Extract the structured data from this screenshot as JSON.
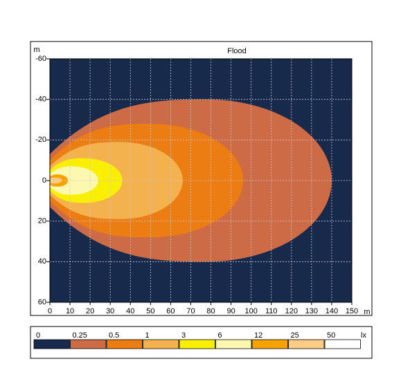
{
  "chart_data": {
    "type": "contour",
    "title": "Flood",
    "x_unit": "m",
    "y_unit": "m",
    "unit": "lx",
    "xlim": [
      0,
      150
    ],
    "ylim": [
      -60,
      60
    ],
    "xticks": [
      0,
      10,
      20,
      30,
      40,
      50,
      60,
      70,
      80,
      90,
      100,
      110,
      120,
      130,
      140,
      150
    ],
    "yticks": [
      -60,
      -40,
      -20,
      0,
      20,
      40,
      60
    ],
    "grid": true,
    "background": "#172a4c",
    "levels": [
      {
        "value": 0,
        "color": "#172a4c"
      },
      {
        "value": 0.25,
        "color": "#cc6b45",
        "reach": 140,
        "half_width": 40,
        "widest_x": 78,
        "start_half_width": 13
      },
      {
        "value": 0.5,
        "color": "#ec7d12",
        "reach": 96,
        "half_width": 28,
        "widest_x": 50,
        "start_half_width": 10
      },
      {
        "value": 1,
        "color": "#f4b24e",
        "reach": 66,
        "half_width": 19,
        "widest_x": 35,
        "start_half_width": 7
      },
      {
        "value": 3,
        "color": "#f8f000",
        "reach": 36,
        "half_width": 11,
        "widest_x": 17,
        "start_half_width": 5
      },
      {
        "value": 6,
        "color": "#fdf8b0",
        "reach": 24,
        "half_width": 7,
        "widest_x": 11,
        "start_half_width": 3
      },
      {
        "value": 12,
        "color": "#f7a200",
        "reach": 9,
        "half_width": 3,
        "widest_x": 4,
        "start_half_width": 2
      },
      {
        "value": 25,
        "color": "#fbcc84",
        "reach": 6,
        "half_width": 1.5,
        "widest_x": 2,
        "start_half_width": 1
      },
      {
        "value": 50,
        "color": "#ffffff"
      }
    ]
  }
}
